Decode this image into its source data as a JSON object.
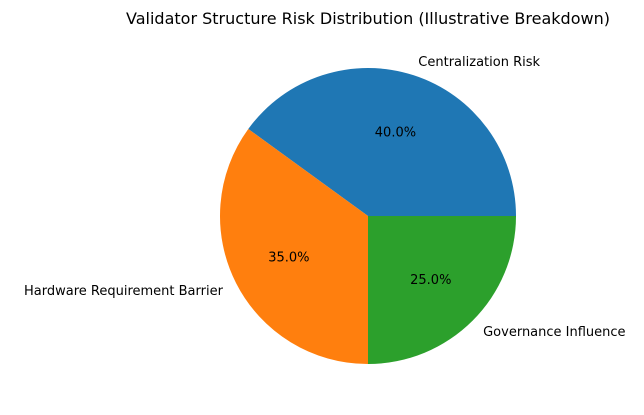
{
  "chart_data": {
    "type": "pie",
    "title": "Validator Structure Risk Distribution (Illustrative Breakdown)",
    "categories": [
      "Centralization Risk",
      "Hardware Requirement Barrier",
      "Governance Influence"
    ],
    "values": [
      40,
      35,
      25
    ],
    "value_labels": [
      "40.0%",
      "35.0%",
      "25.0%"
    ],
    "colors": [
      "#1f77b4",
      "#ff7f0e",
      "#2ca02c"
    ],
    "start_angle_deg": 0,
    "direction": "counterclockwise"
  }
}
